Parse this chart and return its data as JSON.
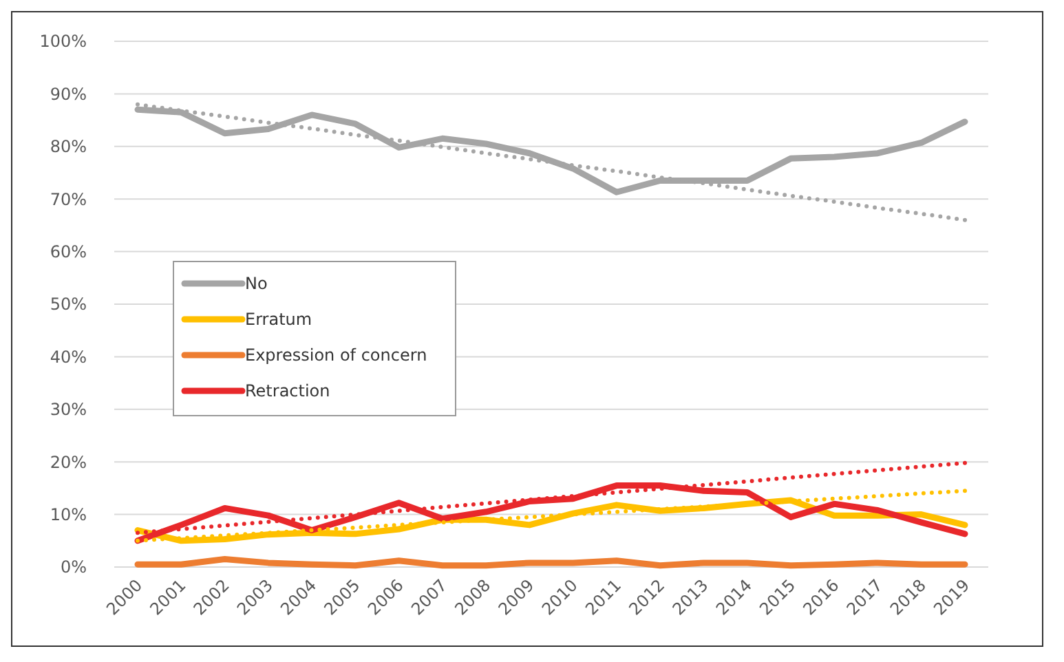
{
  "chart_data": {
    "type": "line",
    "categories": [
      "2000",
      "2001",
      "2002",
      "2003",
      "2004",
      "2005",
      "2006",
      "2007",
      "2008",
      "2009",
      "2010",
      "2011",
      "2012",
      "2013",
      "2014",
      "2015",
      "2016",
      "2017",
      "2018",
      "2019"
    ],
    "ylim": [
      0,
      100
    ],
    "yticks": [
      {
        "value": 0,
        "label": "0%"
      },
      {
        "value": 10,
        "label": "10%"
      },
      {
        "value": 20,
        "label": "20%"
      },
      {
        "value": 30,
        "label": "30%"
      },
      {
        "value": 40,
        "label": "40%"
      },
      {
        "value": 50,
        "label": "50%"
      },
      {
        "value": 60,
        "label": "60%"
      },
      {
        "value": 70,
        "label": "70%"
      },
      {
        "value": 80,
        "label": "80%"
      },
      {
        "value": 90,
        "label": "90%"
      },
      {
        "value": 100,
        "label": "100%"
      }
    ],
    "grid": "y",
    "legend": "left",
    "line_style": "solid",
    "marker": "none",
    "series": [
      {
        "type": "line",
        "color": "#a5a5a5",
        "line_style": "dotted",
        "values": [
          88,
          86.8,
          85.7,
          84.5,
          83.4,
          82.2,
          81.1,
          79.9,
          78.7,
          77.6,
          76.4,
          75.3,
          74.1,
          73,
          71.8,
          70.6,
          69.5,
          68.3,
          67.2,
          66
        ]
      },
      {
        "type": "line",
        "color": "#ffc000",
        "line_style": "dotted",
        "values": [
          5,
          5.5,
          6,
          6.5,
          7,
          7.5,
          8,
          8.5,
          9,
          9.5,
          10,
          10.5,
          11,
          11.5,
          12,
          12.5,
          13,
          13.5,
          14,
          14.5
        ]
      },
      {
        "type": "line",
        "color": "#e8282b",
        "line_style": "dotted",
        "values": [
          6.5,
          7.2,
          7.9,
          8.6,
          9.3,
          10,
          10.7,
          11.4,
          12.1,
          12.8,
          13.5,
          14.2,
          14.9,
          15.6,
          16.3,
          17,
          17.7,
          18.4,
          19.1,
          19.8
        ]
      },
      {
        "name": "No",
        "color": "#a5a5a5",
        "values": [
          87,
          86.5,
          82.5,
          83.3,
          86,
          84.3,
          79.8,
          81.5,
          80.5,
          78.7,
          75.8,
          71.3,
          73.5,
          73.5,
          73.5,
          77.7,
          78,
          78.7,
          80.7,
          84.7
        ]
      },
      {
        "name": "Erratum",
        "color": "#ffc000",
        "values": [
          7,
          5,
          5.3,
          6.2,
          6.5,
          6.3,
          7.2,
          9,
          9,
          8,
          10.2,
          11.8,
          10.7,
          11.2,
          12,
          12.7,
          9.8,
          9.8,
          10,
          8
        ]
      },
      {
        "name": "Expression of concern",
        "color": "#ed7d31",
        "values": [
          0.5,
          0.5,
          1.5,
          0.8,
          0.5,
          0.3,
          1.2,
          0.3,
          0.3,
          0.8,
          0.8,
          1.2,
          0.3,
          0.8,
          0.8,
          0.3,
          0.5,
          0.8,
          0.5,
          0.5
        ]
      },
      {
        "name": "Retraction",
        "color": "#e8282b",
        "values": [
          5,
          8,
          11.2,
          9.8,
          7,
          9.5,
          12.2,
          9.2,
          10.5,
          12.5,
          13,
          15.5,
          15.5,
          14.5,
          14.2,
          9.5,
          12,
          10.8,
          8.5,
          6.3
        ]
      }
    ]
  }
}
